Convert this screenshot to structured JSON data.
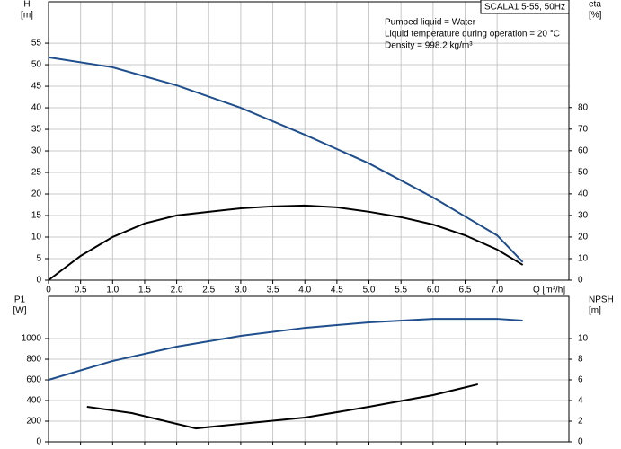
{
  "chart_data": [
    {
      "type": "line",
      "title": "SCALA1 5-55, 50Hz",
      "annotations": [
        "Pumped liquid = Water",
        "Liquid temperature during operation = 20 °C",
        "Density = 998.2 kg/m³"
      ],
      "ylabel": "H",
      "yunit": "[m]",
      "y2label": "eta",
      "y2unit": "[%]",
      "xlabel": "Q [m³/h]",
      "xlim": [
        0,
        8.12
      ],
      "xticks": [
        0,
        0.5,
        {
          "value": 1,
          "label": "1.0"
        },
        1.5,
        {
          "value": 2,
          "label": "2.0"
        },
        2.5,
        {
          "value": 3,
          "label": "3.0"
        },
        3.5,
        {
          "value": 4,
          "label": "4.0"
        },
        4.5,
        {
          "value": 5,
          "label": "5.0"
        },
        5.5,
        {
          "value": 6,
          "label": "6.0"
        },
        6.5,
        {
          "value": 7,
          "label": "7.0"
        }
      ],
      "ylim": [
        0,
        64.6
      ],
      "yticks": [
        0,
        5,
        10,
        15,
        20,
        25,
        30,
        35,
        40,
        45,
        50,
        55
      ],
      "y2lim": [
        0,
        129
      ],
      "y2ticks": [
        0,
        10,
        20,
        30,
        40,
        50,
        60,
        70,
        80
      ],
      "grid": true,
      "series": [
        {
          "color": "#1f4e8c",
          "x": [
            0,
            1,
            2,
            3,
            4,
            5,
            6,
            7,
            7.4
          ],
          "values": [
            51.7,
            49.4,
            45.2,
            40,
            33.75,
            27.1,
            19.2,
            10.4,
            4.2
          ]
        },
        {
          "color": "#000000",
          "axis": "y2",
          "x": [
            0,
            0.5,
            1,
            1.5,
            2,
            2.5,
            3,
            3.5,
            4,
            4.5,
            5,
            5.5,
            6,
            6.5,
            7,
            7.4
          ],
          "values": [
            0,
            11.25,
            20,
            26.3,
            30,
            31.7,
            33.3,
            34.2,
            34.6,
            33.75,
            31.7,
            29.2,
            25.8,
            20.8,
            14.2,
            7.1
          ]
        }
      ]
    },
    {
      "type": "line",
      "ylabel": "P1",
      "yunit": "[W]",
      "y2label": "NPSH",
      "y2unit": "[m]",
      "xlim": [
        0,
        8.12
      ],
      "xticks": [
        0,
        0.5,
        1,
        1.5,
        2,
        2.5,
        3,
        3.5,
        4,
        4.5,
        5,
        5.5,
        6,
        6.5,
        7
      ],
      "ylim": [
        0,
        1409
      ],
      "yticks": [
        0,
        200,
        400,
        600,
        800,
        1000
      ],
      "y2lim": [
        0,
        14.09
      ],
      "y2ticks": [
        0,
        2,
        4,
        6,
        8,
        10
      ],
      "grid": true,
      "series": [
        {
          "color": "#1f4e8c",
          "x": [
            0,
            1,
            2,
            3,
            4,
            5,
            6,
            6.5,
            7,
            7.4
          ],
          "values": [
            600,
            783,
            922,
            1026,
            1104,
            1157,
            1191,
            1191,
            1191,
            1174
          ]
        },
        {
          "color": "#000000",
          "axis": "y2",
          "x": [
            0.6,
            1.3,
            2.3,
            3,
            4,
            5,
            6,
            6.7
          ],
          "values": [
            3.39,
            2.78,
            1.3,
            1.74,
            2.35,
            3.39,
            4.52,
            5.57
          ]
        }
      ]
    }
  ]
}
